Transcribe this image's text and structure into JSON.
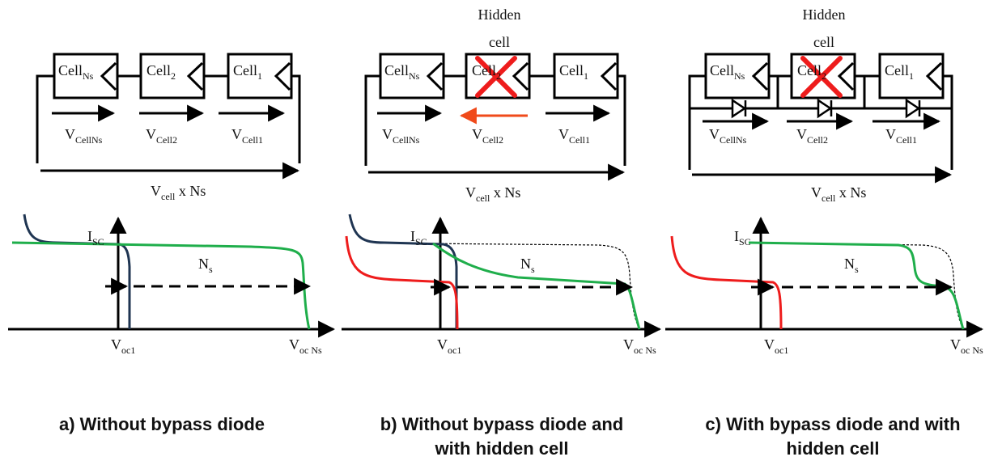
{
  "colors": {
    "line": "#000000",
    "navy": "#1f3552",
    "green": "#1fae4b",
    "red": "#ee1c1c",
    "orange": "#f04a1a",
    "dotted": "#000000"
  },
  "panels": [
    {
      "id": "a",
      "cells": [
        {
          "base": "Cell",
          "sub": "Ns"
        },
        {
          "base": "Cell",
          "sub": "2"
        },
        {
          "base": "Cell",
          "sub": "1"
        }
      ],
      "voltages": [
        {
          "base": "V",
          "sub": "CellNs"
        },
        {
          "base": "V",
          "sub": "Cell2"
        },
        {
          "base": "V",
          "sub": "Cell1"
        }
      ],
      "total": {
        "base": "V",
        "sub": "cell",
        "rest": " x Ns"
      },
      "isc": {
        "base": "I",
        "sub": "SC"
      },
      "ns": {
        "base": "N",
        "sub": "s"
      },
      "voc1": {
        "base": "V",
        "sub": "oc1"
      },
      "vocns": {
        "base": "V",
        "sub": "oc Ns"
      },
      "caption_lines": [
        "a) Without bypass diode"
      ]
    },
    {
      "id": "b",
      "hidden_label_lines": [
        "Hidden",
        "cell"
      ],
      "cells": [
        {
          "base": "Cell",
          "sub": "Ns"
        },
        {
          "base": "Cell",
          "sub": "2"
        },
        {
          "base": "Cell",
          "sub": "1"
        }
      ],
      "voltages": [
        {
          "base": "V",
          "sub": "CellNs"
        },
        {
          "base": "V",
          "sub": "Cell2"
        },
        {
          "base": "V",
          "sub": "Cell1"
        }
      ],
      "total": {
        "base": "V",
        "sub": "cell",
        "rest": " x Ns"
      },
      "isc": {
        "base": "I",
        "sub": "SC"
      },
      "ns": {
        "base": "N",
        "sub": "s"
      },
      "voc1": {
        "base": "V",
        "sub": "oc1"
      },
      "vocns": {
        "base": "V",
        "sub": "oc Ns"
      },
      "caption_lines": [
        "b) Without bypass diode and",
        "with hidden cell"
      ]
    },
    {
      "id": "c",
      "hidden_label_lines": [
        "Hidden",
        "cell"
      ],
      "cells": [
        {
          "base": "Cell",
          "sub": "Ns"
        },
        {
          "base": "Cell",
          "sub": "2"
        },
        {
          "base": "Cell",
          "sub": "1"
        }
      ],
      "voltages": [
        {
          "base": "V",
          "sub": "CellNs"
        },
        {
          "base": "V",
          "sub": "Cell2"
        },
        {
          "base": "V",
          "sub": "Cell1"
        }
      ],
      "total": {
        "base": "V",
        "sub": "cell",
        "rest": " x Ns"
      },
      "isc": {
        "base": "I",
        "sub": "SC"
      },
      "ns": {
        "base": "N",
        "sub": "s"
      },
      "voc1": {
        "base": "V",
        "sub": "oc1"
      },
      "vocns": {
        "base": "V",
        "sub": "oc Ns"
      },
      "caption_lines": [
        "c) With bypass diode and with",
        "hidden cell"
      ]
    }
  ]
}
